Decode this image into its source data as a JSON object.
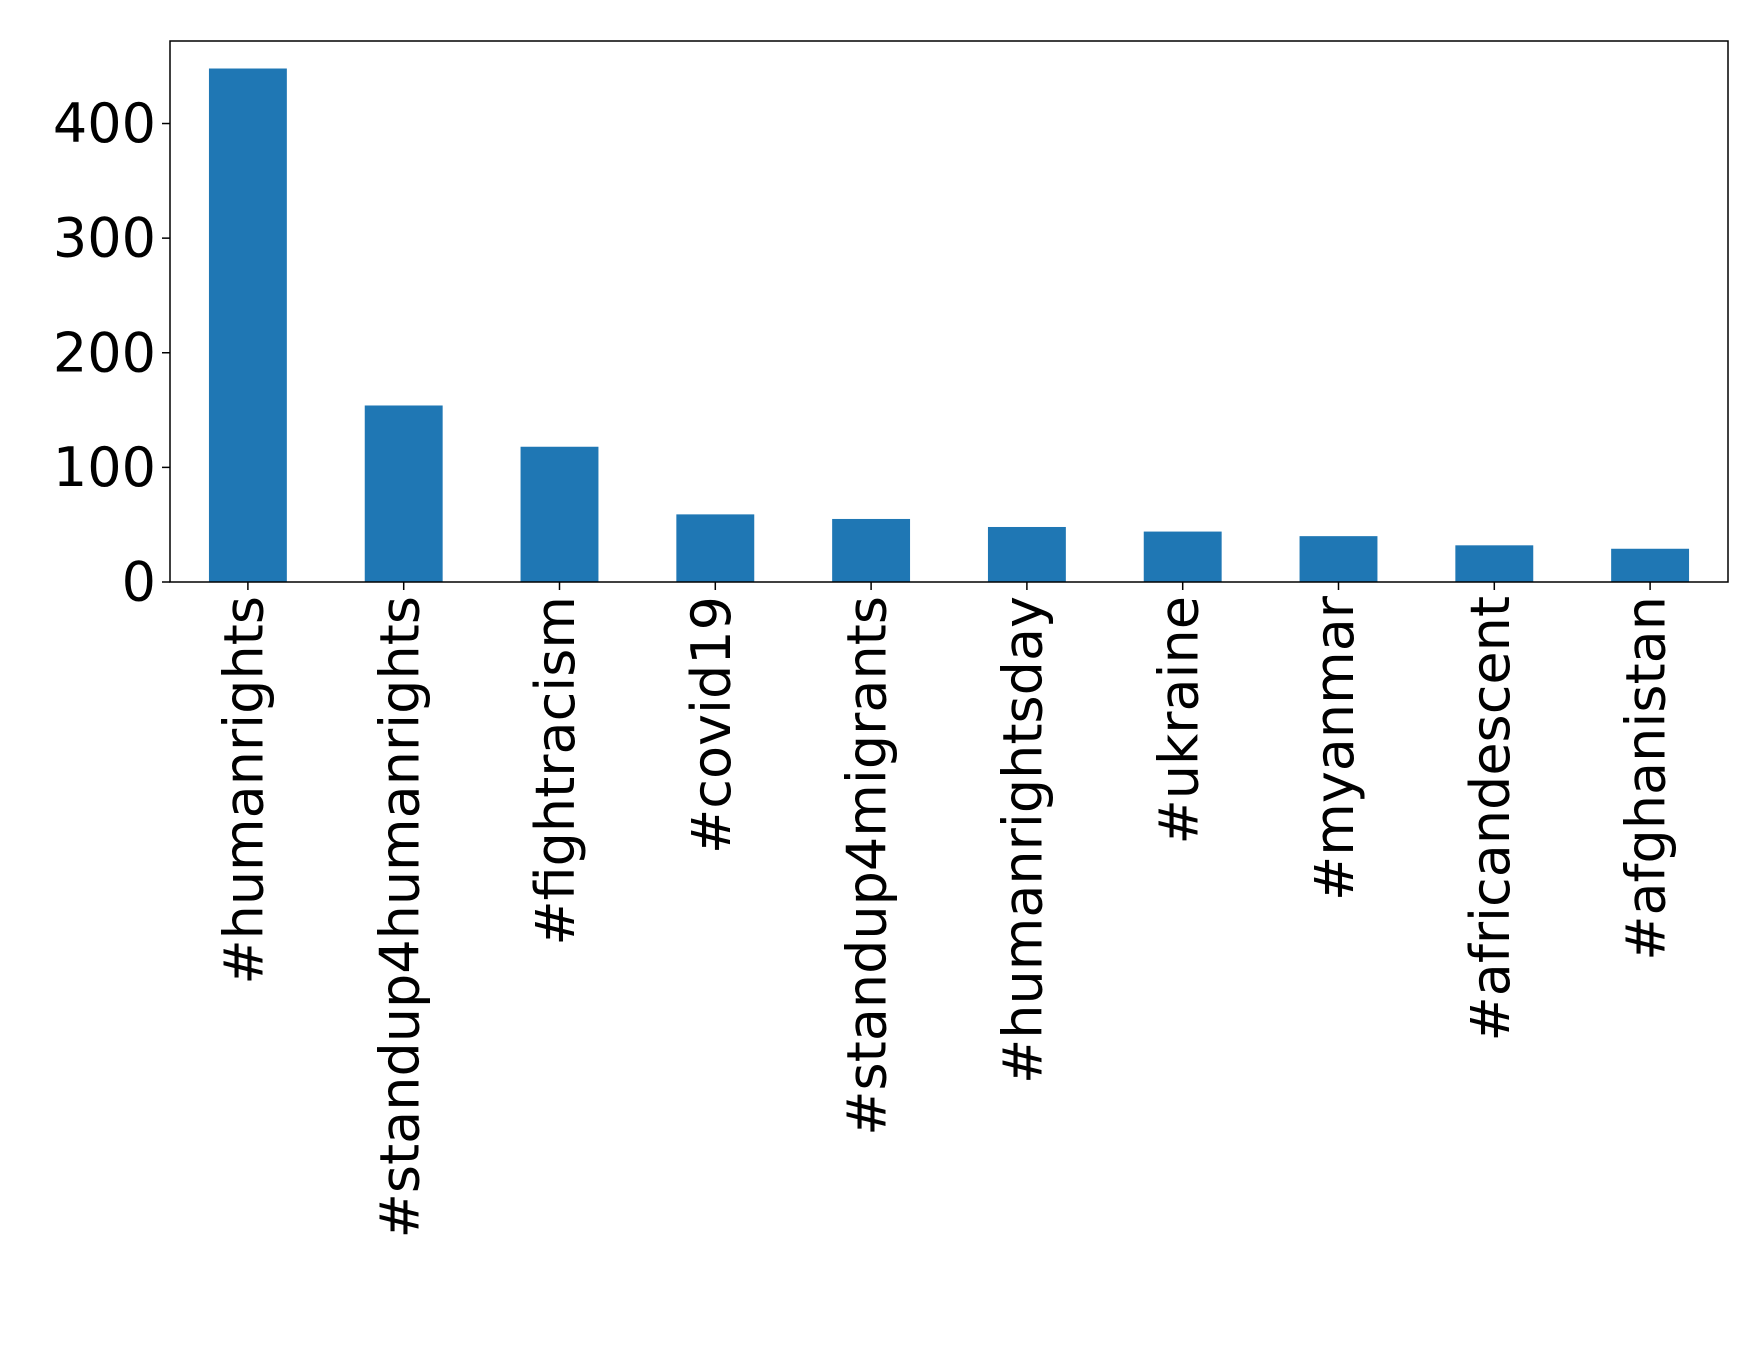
{
  "chart_data": {
    "type": "bar",
    "categories": [
      "#humanrights",
      "#standup4humanrights",
      "#fightracism",
      "#covid19",
      "#standup4migrants",
      "#humanrightsday",
      "#ukraine",
      "#myanmar",
      "#africandescent",
      "#afghanistan"
    ],
    "values": [
      448,
      154,
      118,
      59,
      55,
      48,
      44,
      40,
      32,
      29
    ],
    "color": "#1f77b4",
    "ylim": [
      0,
      472
    ],
    "yticks": [
      0,
      100,
      200,
      300,
      400
    ],
    "grid": false
  }
}
